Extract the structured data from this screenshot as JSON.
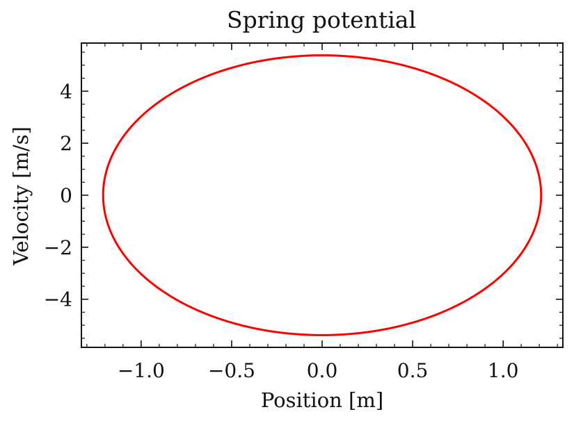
{
  "chart_data": {
    "type": "line",
    "title": "Spring potential",
    "xlabel": "Position [m]",
    "ylabel": "Velocity [m/s]",
    "xlim": [
      -1.33,
      1.33
    ],
    "ylim": [
      -5.85,
      5.85
    ],
    "xticks": [
      -1.0,
      -0.5,
      0.0,
      0.5,
      1.0
    ],
    "xtick_labels": [
      "−1.0",
      "−0.5",
      "0.0",
      "0.5",
      "1.0"
    ],
    "yticks": [
      -4,
      -2,
      0,
      2,
      4
    ],
    "ytick_labels": [
      "−4",
      "−2",
      "0",
      "2",
      "4"
    ],
    "grid": false,
    "legend": "none",
    "series": [
      {
        "color": "#ff0000",
        "shape": "closed orbit (ellipse)",
        "x_amplitude": 1.21,
        "y_amplitude": 5.38,
        "center": [
          0.0,
          0.0
        ]
      }
    ]
  }
}
